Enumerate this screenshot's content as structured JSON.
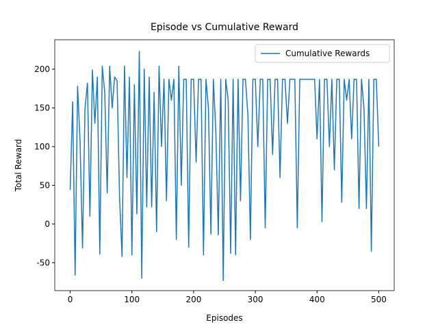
{
  "chart_data": {
    "type": "line",
    "title": "Episode vs Cumulative Reward",
    "xlabel": "Episodes",
    "ylabel": "Total Reward",
    "x": [
      0,
      4,
      8,
      12,
      16,
      20,
      24,
      28,
      32,
      36,
      40,
      44,
      48,
      52,
      56,
      60,
      64,
      68,
      72,
      76,
      80,
      84,
      88,
      92,
      96,
      100,
      104,
      108,
      112,
      116,
      120,
      124,
      128,
      132,
      136,
      140,
      144,
      148,
      152,
      156,
      160,
      164,
      168,
      172,
      176,
      180,
      184,
      188,
      192,
      196,
      200,
      204,
      208,
      212,
      216,
      220,
      224,
      228,
      232,
      236,
      240,
      244,
      248,
      252,
      256,
      260,
      264,
      268,
      272,
      276,
      280,
      284,
      288,
      292,
      296,
      300,
      304,
      308,
      312,
      316,
      320,
      324,
      328,
      332,
      336,
      340,
      344,
      348,
      352,
      356,
      360,
      364,
      368,
      372,
      376,
      380,
      384,
      388,
      392,
      396,
      400,
      404,
      408,
      412,
      416,
      420,
      424,
      428,
      432,
      436,
      440,
      444,
      448,
      452,
      456,
      460,
      464,
      468,
      472,
      476,
      480,
      484,
      488,
      492,
      496,
      500
    ],
    "series": [
      {
        "name": "Cumulative Rewards",
        "color": "#1f77b4",
        "values": [
          44,
          158,
          -66,
          178,
          107,
          -31,
          150,
          182,
          10,
          199,
          130,
          190,
          -39,
          204,
          170,
          40,
          204,
          150,
          190,
          185,
          35,
          -42,
          204,
          60,
          190,
          -40,
          180,
          13,
          223,
          -70,
          200,
          22,
          190,
          22,
          170,
          -10,
          204,
          100,
          187,
          30,
          187,
          160,
          187,
          -20,
          204,
          50,
          187,
          187,
          -30,
          187,
          187,
          80,
          187,
          187,
          -40,
          187,
          150,
          -13,
          187,
          120,
          -14,
          187,
          -73,
          187,
          160,
          -38,
          187,
          -40,
          187,
          30,
          187,
          187,
          140,
          -20,
          187,
          187,
          100,
          187,
          187,
          -5,
          187,
          187,
          90,
          187,
          187,
          60,
          187,
          187,
          130,
          187,
          187,
          187,
          -5,
          187,
          187,
          187,
          187,
          187,
          187,
          187,
          110,
          187,
          3,
          187,
          187,
          100,
          187,
          70,
          187,
          187,
          28,
          187,
          160,
          187,
          110,
          187,
          187,
          20,
          187,
          150,
          20,
          187,
          -35,
          187,
          187,
          100
        ]
      }
    ],
    "xlim": [
      -25,
      525
    ],
    "ylim": [
      -86,
      238
    ],
    "xticks": [
      0,
      100,
      200,
      300,
      400,
      500
    ],
    "yticks": [
      -50,
      0,
      50,
      100,
      150,
      200
    ],
    "legend": "upper right"
  }
}
